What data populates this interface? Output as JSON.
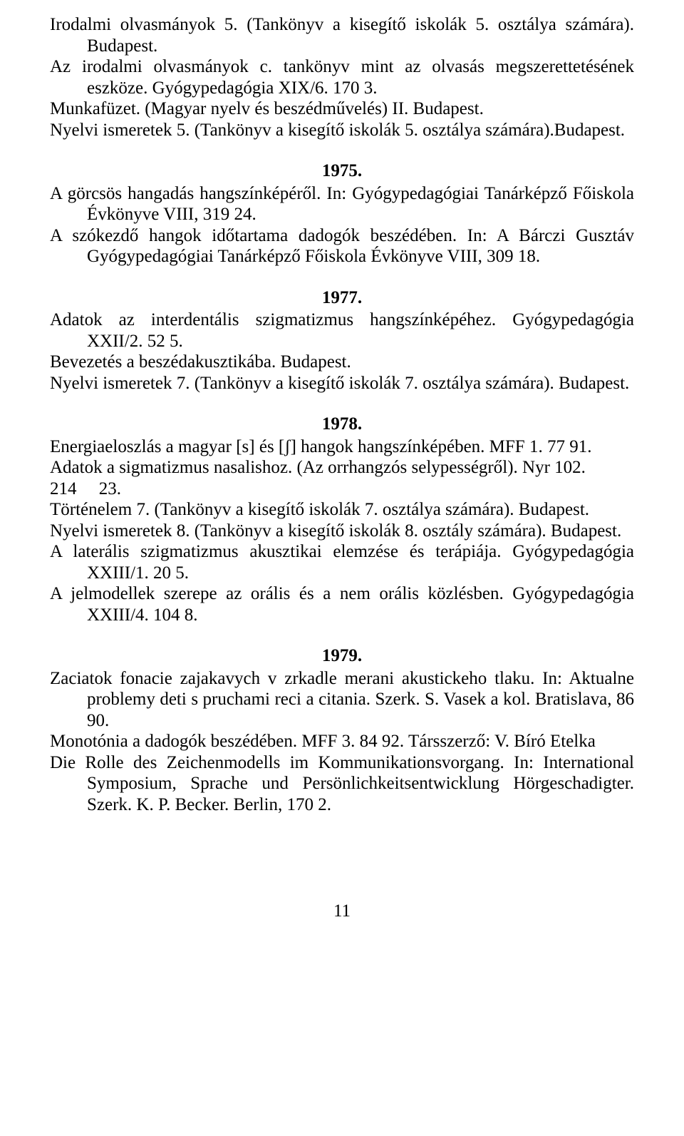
{
  "top": {
    "e1": "Irodalmi olvasmányok 5. (Tankönyv a kisegítő iskolák 5. osztálya számára). Budapest.",
    "e2": "Az irodalmi olvasmányok c. tankönyv mint az olvasás megszerettetésének eszköze. Gyógypedagógia XIX/6. 170 3.",
    "e3": "Munkafüzet. (Magyar nyelv és beszédművelés) II. Budapest.",
    "e4": "Nyelvi ismeretek 5. (Tankönyv a kisegítő iskolák 5. osztálya számára).Budapest."
  },
  "y1975": {
    "year": "1975.",
    "e1": "A görcsös hangadás hangszínképéről. In: Gyógypedagógiai Tanárképző Főiskola Évkönyve VIII, 319 24.",
    "e2": "A szókezdő hangok időtartama dadogók beszédében. In: A Bárczi Gusztáv Gyógypedagógiai Tanárképző Főiskola Évkönyve VIII, 309 18."
  },
  "y1977": {
    "year": "1977.",
    "e1": "Adatok az interdentális szigmatizmus hangszínképéhez. Gyógypedagógia XXII/2. 52 5.",
    "e2": "Bevezetés a beszédakusztikába. Budapest.",
    "e3": "Nyelvi ismeretek 7. (Tankönyv a kisegítő iskolák 7. osztálya számára). Budapest."
  },
  "y1978": {
    "year": "1978.",
    "e1": "Energiaeloszlás a magyar [s] és [ʃ] hangok hangszínképében. MFF 1. 77 91.",
    "e2a": "Adatok a sigmatizmus nasalishoz. (Az orrhangzós selypességről). Nyr 102.",
    "e2b": "214     23.",
    "e3": "Történelem 7. (Tankönyv a kisegítő iskolák 7. osztálya számára). Budapest.",
    "e4": "Nyelvi ismeretek 8. (Tankönyv a kisegítő iskolák 8. osztály számára). Budapest.",
    "e5": "A laterális szigmatizmus akusztikai elemzése és terápiája. Gyógypedagógia XXIII/1. 20 5.",
    "e6": "A jelmodellek szerepe az orális és a nem orális közlésben. Gyógypedagógia XXIII/4. 104 8."
  },
  "y1979": {
    "year": "1979.",
    "e1": "Zaciatok fonacie zajakavych v zrkadle merani akustickeho tlaku. In: Aktualne problemy deti s pruchami reci a citania. Szerk. S. Vasek a kol. Bratislava, 86 90.",
    "e2": "Monotónia a dadogók beszédében. MFF 3. 84 92. Társszerző: V. Bíró Etelka",
    "e3": "Die Rolle des Zeichenmodells im Kommunikationsvorgang. In: International Symposium, Sprache und Persönlichkeitsentwicklung Hörgeschadigter. Szerk. K. P. Becker. Berlin, 170 2."
  },
  "pagenum": "11"
}
